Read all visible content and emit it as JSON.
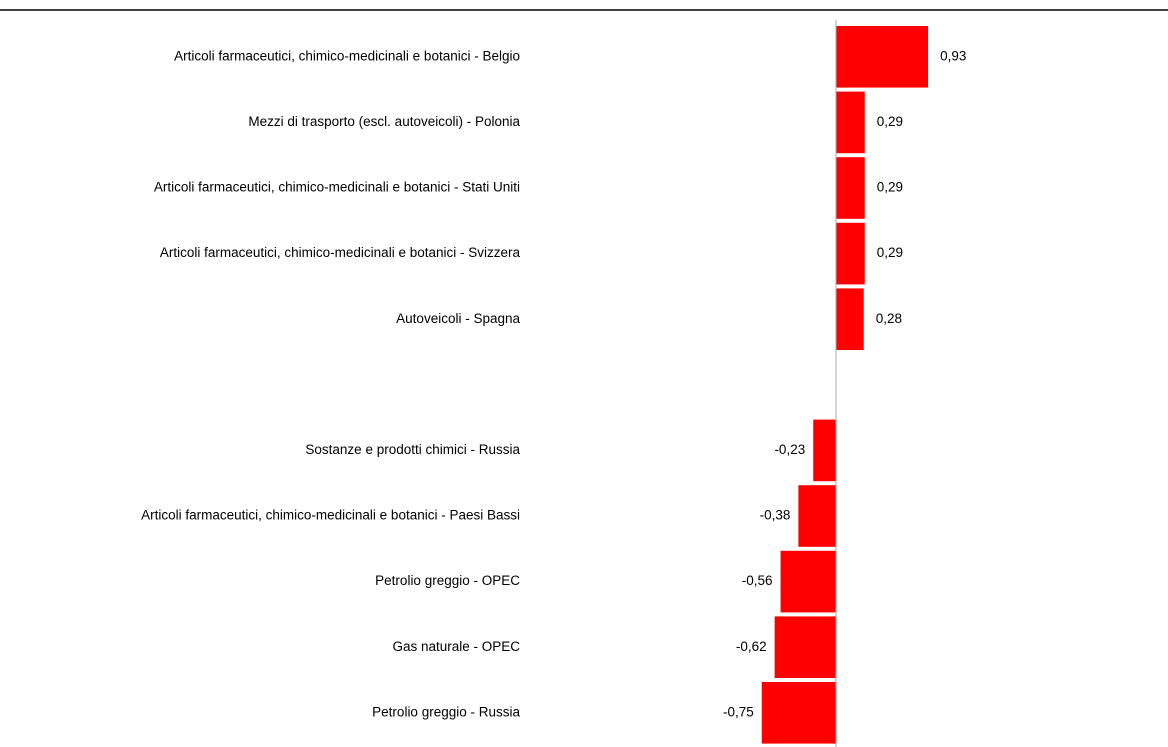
{
  "chart_data": {
    "type": "bar",
    "orientation": "horizontal",
    "color": "#ff0000",
    "categories": [
      "Articoli farmaceutici, chimico-medicinali e botanici - Belgio",
      "Mezzi di trasporto (escl. autoveicoli) - Polonia",
      "Articoli farmaceutici, chimico-medicinali e botanici - Stati Uniti",
      "Articoli farmaceutici, chimico-medicinali e botanici - Svizzera",
      "Autoveicoli - Spagna",
      null,
      "Sostanze e prodotti chimici - Russia",
      "Articoli farmaceutici, chimico-medicinali e botanici - Paesi Bassi",
      "Petrolio greggio - OPEC",
      "Gas naturale - OPEC",
      "Petrolio greggio - Russia"
    ],
    "values": [
      0.93,
      0.29,
      0.29,
      0.29,
      0.28,
      null,
      -0.23,
      -0.38,
      -0.56,
      -0.62,
      -0.75
    ],
    "value_labels": [
      "0,93",
      "0,29",
      "0,29",
      "0,29",
      "0,28",
      null,
      "-0,23",
      "-0,38",
      "-0,56",
      "-0,62",
      "-0,75"
    ]
  }
}
